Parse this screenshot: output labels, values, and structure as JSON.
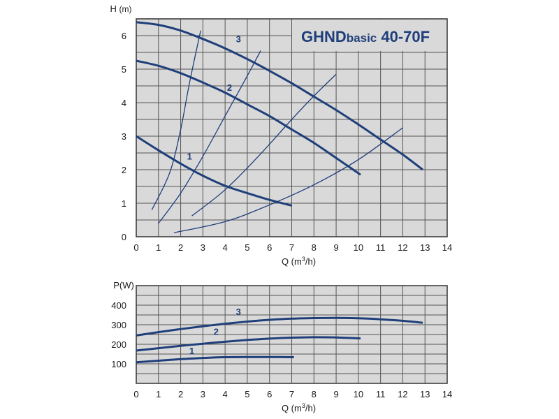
{
  "colors": {
    "plot_background": "#d9d9d9",
    "grid": "#555555",
    "pump_curve": "#1f3f7a",
    "system_curve": "#1f3f7a",
    "text": "#1a1a1a"
  },
  "chart_data": [
    {
      "type": "line",
      "title_main": "GHND",
      "title_sub": "basic",
      "title_tail": " 40-70F",
      "ylabel_prefix": "H",
      "ylabel_unit": "(m)",
      "xlabel": "Q (m",
      "xlabel_sup": "3",
      "xlabel_tail": "/h)",
      "xlim": [
        0,
        14
      ],
      "ylim": [
        0,
        6.5
      ],
      "x_ticks": [
        "0",
        "1",
        "2",
        "3",
        "4",
        "5",
        "6",
        "7",
        "8",
        "9",
        "10",
        "11",
        "12",
        "13",
        "14"
      ],
      "y_ticks": [
        "0",
        "1",
        "2",
        "3",
        "4",
        "5",
        "6"
      ],
      "grid": true,
      "series": [
        {
          "name": "1",
          "x": [
            0,
            1,
            2,
            3,
            4,
            5,
            6,
            7.0
          ],
          "y": [
            3.0,
            2.58,
            2.18,
            1.82,
            1.52,
            1.3,
            1.1,
            0.93
          ]
        },
        {
          "name": "2",
          "x": [
            0,
            1,
            2,
            3,
            4,
            5,
            6,
            7,
            8,
            9,
            10.1
          ],
          "y": [
            5.25,
            5.1,
            4.88,
            4.6,
            4.3,
            3.95,
            3.6,
            3.2,
            2.8,
            2.35,
            1.85
          ]
        },
        {
          "name": "3",
          "x": [
            0,
            1,
            2,
            3,
            4,
            5,
            6,
            7,
            8,
            9,
            10,
            11,
            12,
            12.9
          ],
          "y": [
            6.4,
            6.32,
            6.15,
            5.9,
            5.62,
            5.3,
            4.95,
            4.58,
            4.18,
            3.78,
            3.35,
            2.9,
            2.45,
            2.0
          ]
        }
      ],
      "system_curves": [
        {
          "x": [
            0.7,
            1.5,
            2.0,
            2.4,
            2.9
          ],
          "y": [
            0.8,
            1.9,
            3.2,
            4.6,
            6.15
          ]
        },
        {
          "x": [
            1.0,
            2.0,
            3.0,
            4.0,
            5.0,
            5.6
          ],
          "y": [
            0.4,
            1.3,
            2.4,
            3.6,
            4.8,
            5.55
          ]
        },
        {
          "x": [
            2.5,
            4.0,
            5.5,
            7.0,
            8.0,
            9.0
          ],
          "y": [
            0.62,
            1.4,
            2.4,
            3.5,
            4.2,
            4.85
          ]
        },
        {
          "x": [
            1.7,
            4.0,
            6.0,
            8.0,
            10.0,
            12.0
          ],
          "y": [
            0.12,
            0.45,
            0.95,
            1.55,
            2.3,
            3.25
          ]
        }
      ],
      "curve_labels": [
        {
          "text": "1",
          "x": 2.4,
          "y": 2.3
        },
        {
          "text": "2",
          "x": 4.2,
          "y": 4.35
        },
        {
          "text": "3",
          "x": 4.6,
          "y": 5.8
        }
      ]
    },
    {
      "type": "line",
      "ylabel": "P(W)",
      "xlabel": "Q (m",
      "xlabel_sup": "3",
      "xlabel_tail": "/h)",
      "xlim": [
        0,
        14
      ],
      "ylim": [
        0,
        500
      ],
      "x_ticks": [
        "0",
        "1",
        "2",
        "3",
        "4",
        "5",
        "6",
        "7",
        "8",
        "9",
        "10",
        "11",
        "12",
        "13",
        "14"
      ],
      "y_ticks": [
        "100",
        "200",
        "300",
        "400"
      ],
      "grid": true,
      "series": [
        {
          "name": "1",
          "x": [
            0,
            1,
            2,
            3,
            4,
            5,
            6,
            7.1
          ],
          "y": [
            108,
            116,
            124,
            130,
            134,
            135,
            135,
            134
          ]
        },
        {
          "name": "2",
          "x": [
            0,
            1,
            2,
            3,
            4,
            5,
            6,
            7,
            8,
            9,
            10.1
          ],
          "y": [
            168,
            180,
            192,
            203,
            213,
            222,
            229,
            234,
            236,
            235,
            230
          ]
        },
        {
          "name": "3",
          "x": [
            0,
            1,
            2,
            3,
            4,
            5,
            6,
            7,
            8,
            9,
            10,
            11,
            12,
            12.9
          ],
          "y": [
            245,
            262,
            278,
            292,
            305,
            316,
            325,
            331,
            334,
            335,
            333,
            328,
            320,
            310
          ]
        }
      ],
      "curve_labels": [
        {
          "text": "1",
          "x": 2.5,
          "y": 150
        },
        {
          "text": "2",
          "x": 3.6,
          "y": 248
        },
        {
          "text": "3",
          "x": 4.6,
          "y": 350
        }
      ]
    }
  ]
}
